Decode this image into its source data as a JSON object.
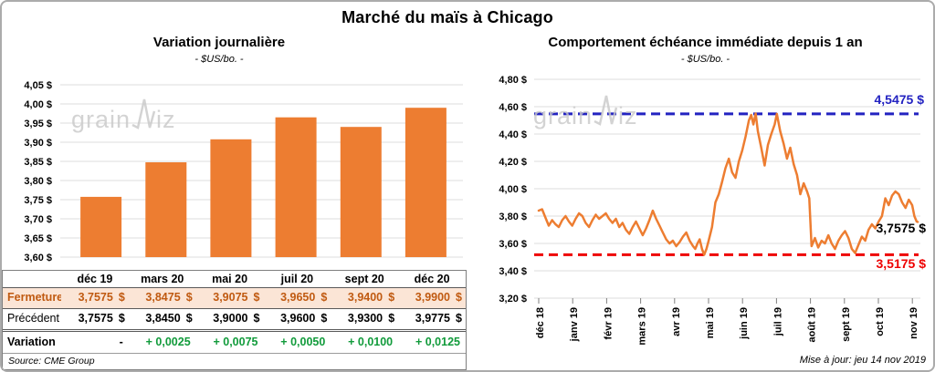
{
  "header": {
    "title": "Marché du maïs à Chicago"
  },
  "watermark": {
    "left": "grain",
    "right": "iz"
  },
  "chart_data": [
    {
      "type": "bar",
      "title": "Variation journalière",
      "subtitle": "- $US/bo. -",
      "categories": [
        "déc 19",
        "mars 20",
        "mai 20",
        "juil 20",
        "sept 20",
        "déc 20"
      ],
      "values": [
        3.7575,
        3.8475,
        3.9075,
        3.965,
        3.94,
        3.99
      ],
      "ylim": [
        3.6,
        4.05
      ],
      "ytick_step": 0.05,
      "bar_color": "#ED7D31",
      "grid": true,
      "legend": "none"
    },
    {
      "type": "line",
      "title": "Comportement échéance immédiate depuis 1 an",
      "subtitle": "- $US/bo. -",
      "x_labels": [
        "déc 18",
        "janv 19",
        "févr 19",
        "mars 19",
        "avr 19",
        "mai 19",
        "juin 19",
        "juil 19",
        "août 19",
        "sept 19",
        "oct 19",
        "nov 19"
      ],
      "ylim": [
        3.2,
        4.8
      ],
      "ytick_step": 0.2,
      "line_color": "#ED7D31",
      "grid": true,
      "annotations": {
        "high": {
          "value": 4.5475,
          "label": "4,5475 $",
          "color": "#2323C1",
          "style": "dashed"
        },
        "low": {
          "value": 3.5175,
          "label": "3,5175 $",
          "color": "#EE0000",
          "style": "dashed"
        },
        "last": {
          "value": 3.7575,
          "label": "3,7575 $",
          "color": "#000000"
        }
      },
      "points": [
        [
          0,
          3.84
        ],
        [
          3,
          3.85
        ],
        [
          6,
          3.79
        ],
        [
          9,
          3.73
        ],
        [
          12,
          3.77
        ],
        [
          15,
          3.74
        ],
        [
          18,
          3.72
        ],
        [
          21,
          3.77
        ],
        [
          24,
          3.8
        ],
        [
          27,
          3.76
        ],
        [
          30,
          3.73
        ],
        [
          33,
          3.78
        ],
        [
          36,
          3.82
        ],
        [
          39,
          3.8
        ],
        [
          42,
          3.75
        ],
        [
          45,
          3.72
        ],
        [
          48,
          3.77
        ],
        [
          51,
          3.81
        ],
        [
          54,
          3.78
        ],
        [
          57,
          3.8
        ],
        [
          60,
          3.82
        ],
        [
          63,
          3.78
        ],
        [
          66,
          3.75
        ],
        [
          69,
          3.78
        ],
        [
          72,
          3.72
        ],
        [
          75,
          3.75
        ],
        [
          78,
          3.7
        ],
        [
          81,
          3.67
        ],
        [
          84,
          3.72
        ],
        [
          87,
          3.76
        ],
        [
          90,
          3.71
        ],
        [
          93,
          3.66
        ],
        [
          96,
          3.71
        ],
        [
          99,
          3.77
        ],
        [
          102,
          3.84
        ],
        [
          105,
          3.78
        ],
        [
          108,
          3.73
        ],
        [
          111,
          3.68
        ],
        [
          114,
          3.63
        ],
        [
          117,
          3.6
        ],
        [
          120,
          3.62
        ],
        [
          123,
          3.58
        ],
        [
          126,
          3.61
        ],
        [
          129,
          3.65
        ],
        [
          132,
          3.68
        ],
        [
          135,
          3.62
        ],
        [
          138,
          3.58
        ],
        [
          140,
          3.56
        ],
        [
          142,
          3.6
        ],
        [
          144,
          3.63
        ],
        [
          146,
          3.56
        ],
        [
          148,
          3.5175
        ],
        [
          150,
          3.56
        ],
        [
          152,
          3.62
        ],
        [
          155,
          3.72
        ],
        [
          158,
          3.9
        ],
        [
          161,
          3.96
        ],
        [
          164,
          4.05
        ],
        [
          167,
          4.15
        ],
        [
          170,
          4.22
        ],
        [
          173,
          4.12
        ],
        [
          176,
          4.08
        ],
        [
          179,
          4.2
        ],
        [
          182,
          4.28
        ],
        [
          185,
          4.38
        ],
        [
          188,
          4.5
        ],
        [
          190,
          4.54
        ],
        [
          192,
          4.47
        ],
        [
          194,
          4.55
        ],
        [
          196,
          4.42
        ],
        [
          199,
          4.3
        ],
        [
          202,
          4.17
        ],
        [
          205,
          4.32
        ],
        [
          208,
          4.4
        ],
        [
          211,
          4.47
        ],
        [
          213,
          4.5475
        ],
        [
          216,
          4.42
        ],
        [
          219,
          4.33
        ],
        [
          222,
          4.22
        ],
        [
          225,
          4.3
        ],
        [
          228,
          4.18
        ],
        [
          231,
          4.1
        ],
        [
          234,
          3.96
        ],
        [
          237,
          4.04
        ],
        [
          240,
          3.98
        ],
        [
          242,
          3.93
        ],
        [
          244,
          3.58
        ],
        [
          247,
          3.64
        ],
        [
          250,
          3.57
        ],
        [
          253,
          3.62
        ],
        [
          256,
          3.6
        ],
        [
          259,
          3.66
        ],
        [
          262,
          3.6
        ],
        [
          265,
          3.56
        ],
        [
          268,
          3.62
        ],
        [
          271,
          3.66
        ],
        [
          274,
          3.69
        ],
        [
          277,
          3.64
        ],
        [
          280,
          3.56
        ],
        [
          283,
          3.53
        ],
        [
          286,
          3.59
        ],
        [
          289,
          3.65
        ],
        [
          292,
          3.62
        ],
        [
          295,
          3.7
        ],
        [
          298,
          3.74
        ],
        [
          301,
          3.71
        ],
        [
          304,
          3.76
        ],
        [
          307,
          3.8
        ],
        [
          310,
          3.93
        ],
        [
          313,
          3.88
        ],
        [
          316,
          3.95
        ],
        [
          319,
          3.98
        ],
        [
          322,
          3.96
        ],
        [
          325,
          3.9
        ],
        [
          328,
          3.86
        ],
        [
          331,
          3.92
        ],
        [
          334,
          3.88
        ],
        [
          336,
          3.8
        ],
        [
          338,
          3.76
        ],
        [
          339,
          3.7575
        ]
      ]
    }
  ],
  "table": {
    "header": [
      "",
      "déc 19",
      "mars 20",
      "mai 20",
      "juil 20",
      "sept 20",
      "déc 20"
    ],
    "rows": [
      {
        "label": "Fermeture",
        "unit": "$",
        "cells": [
          "3,7575",
          "3,8475",
          "3,9075",
          "3,9650",
          "3,9400",
          "3,9900"
        ]
      },
      {
        "label": "Précédent",
        "unit": "$",
        "cells": [
          "3,7575",
          "3,8450",
          "3,9000",
          "3,9600",
          "3,9300",
          "3,9775"
        ]
      },
      {
        "label": "Variation",
        "unit": "",
        "cells": [
          "-",
          "+ 0,0025",
          "+ 0,0075",
          "+ 0,0050",
          "+ 0,0100",
          "+ 0,0125"
        ]
      }
    ],
    "source": "Source: CME Group"
  },
  "footer": {
    "updated": "Mise à jour: jeu 14 nov 2019"
  }
}
